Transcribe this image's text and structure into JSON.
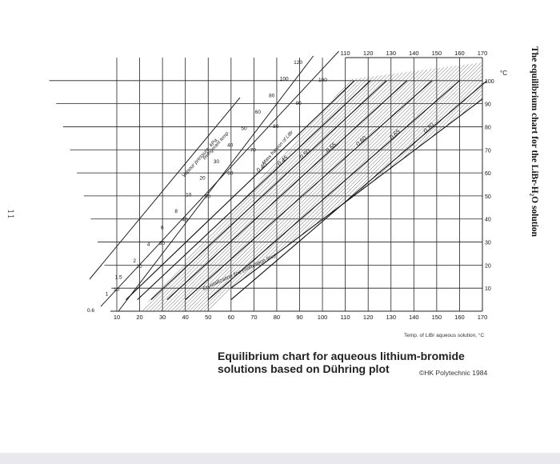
{
  "page_number": "11",
  "side_title": "The equilibrium chart for the LiBr-H₂O solution",
  "caption_line1": "Equilibrium chart for aqueous lithium-bromide",
  "caption_line2": "solutions based on Dühring plot",
  "credit": "©HK Polytechnic 1984",
  "chart_data": {
    "type": "line",
    "title": "",
    "xlabel": "Temp. of LiBr aqueous solution, °C",
    "ylabel": "°C",
    "x_ticks": [
      10,
      20,
      30,
      40,
      50,
      60,
      70,
      80,
      90,
      100,
      110,
      120,
      130,
      140,
      150,
      160,
      170
    ],
    "y_ticks": [
      10,
      20,
      30,
      40,
      50,
      60,
      70,
      80,
      90,
      100
    ],
    "xlim": [
      10,
      170
    ],
    "ylim": [
      0,
      110
    ],
    "vapour_pressure_label": "Vapour pressure, kPa",
    "vapour_pressure_ticks": [
      "0.6",
      "1",
      "1.5",
      "2",
      "4",
      "6",
      "8",
      "10",
      "20",
      "30",
      "40",
      "50",
      "60",
      "80",
      "100",
      "120"
    ],
    "refrigerant_temp_label": "Refrigerant temp.",
    "refrigerant_temp_ticks": [
      "10",
      "20",
      "30",
      "40",
      "50",
      "60",
      "70",
      "80",
      "90",
      "100"
    ],
    "mass_fraction_label": "Mass fraction of LiBr",
    "series": [
      {
        "name": "0.40",
        "x": [
          14,
          114
        ],
        "y": [
          5,
          100
        ]
      },
      {
        "name": "0.45",
        "x": [
          19,
          121
        ],
        "y": [
          5,
          100
        ]
      },
      {
        "name": "0.50",
        "x": [
          25,
          128
        ],
        "y": [
          5,
          100
        ]
      },
      {
        "name": "0.55",
        "x": [
          32,
          137
        ],
        "y": [
          5,
          100
        ]
      },
      {
        "name": "0.60",
        "x": [
          40,
          148
        ],
        "y": [
          5,
          100
        ]
      },
      {
        "name": "0.65",
        "x": [
          50,
          160
        ],
        "y": [
          5,
          100
        ]
      },
      {
        "name": "0.70",
        "x": [
          60,
          172
        ],
        "y": [
          5,
          100
        ]
      }
    ],
    "crystallization_label": "Crystallization line (Saturation line)",
    "crystallization_line": {
      "x": [
        60,
        170
      ],
      "y": [
        10,
        92
      ]
    },
    "grid": true,
    "legend": "none"
  }
}
